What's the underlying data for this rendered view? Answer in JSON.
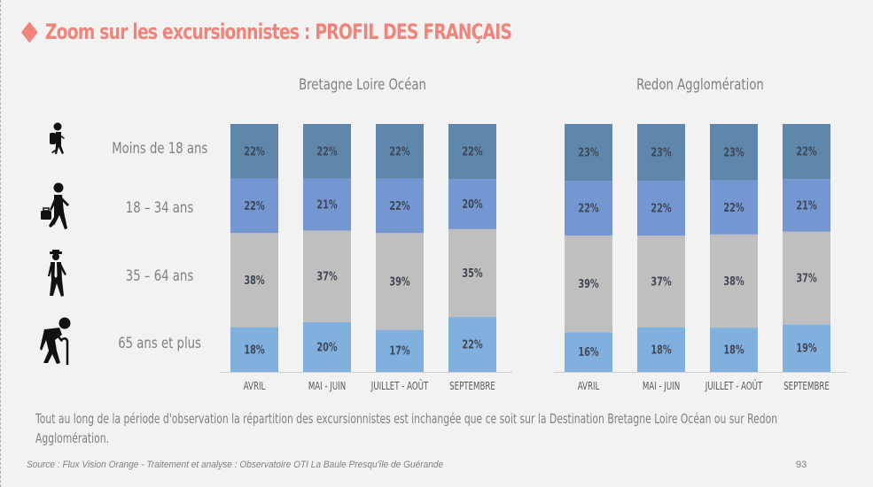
{
  "header": {
    "title": "Zoom sur les excursionnistes : PROFIL DES FRANÇAIS",
    "accent_color": "#f0847a"
  },
  "age_groups": [
    {
      "label": "Moins de 18 ans",
      "icon": "child-with-backpack-icon"
    },
    {
      "label": "18 – 34 ans",
      "icon": "man-with-briefcase-icon"
    },
    {
      "label": "35 – 64 ans",
      "icon": "man-with-hat-and-tie-icon"
    },
    {
      "label": "65 ans et plus",
      "icon": "elderly-with-cane-icon"
    }
  ],
  "colors": {
    "moins_18": "#5f87ab",
    "18_34": "#7496d1",
    "35_64": "#bfbfbf",
    "65_plus": "#82b0de",
    "label_text": "#404756",
    "axis": "#d0d0d0"
  },
  "chart_data": [
    {
      "type": "bar",
      "stacked": true,
      "normalized": true,
      "title": "Bretagne Loire Océan",
      "categories": [
        "AVRIL",
        "MAI - JUIN",
        "JUILLET - AOÛT",
        "SEPTEMBRE"
      ],
      "series": [
        {
          "name": "65 ans et plus",
          "values": [
            18,
            20,
            17,
            22
          ]
        },
        {
          "name": "35 – 64 ans",
          "values": [
            38,
            37,
            39,
            35
          ]
        },
        {
          "name": "18 – 34 ans",
          "values": [
            22,
            21,
            22,
            20
          ]
        },
        {
          "name": "Moins de 18 ans",
          "values": [
            22,
            22,
            22,
            22
          ]
        }
      ],
      "value_suffix": "%",
      "xlabel": "",
      "ylabel": "",
      "grid": false,
      "legend": "none"
    },
    {
      "type": "bar",
      "stacked": true,
      "normalized": true,
      "title": "Redon Agglomération",
      "categories": [
        "AVRIL",
        "MAI - JUIN",
        "JUILLET - AOÛT",
        "SEPTEMBRE"
      ],
      "series": [
        {
          "name": "65 ans et plus",
          "values": [
            16,
            18,
            18,
            19
          ]
        },
        {
          "name": "35 – 64 ans",
          "values": [
            39,
            37,
            38,
            37
          ]
        },
        {
          "name": "18 – 34 ans",
          "values": [
            22,
            22,
            22,
            21
          ]
        },
        {
          "name": "Moins de 18 ans",
          "values": [
            23,
            23,
            23,
            22
          ]
        }
      ],
      "value_suffix": "%",
      "xlabel": "",
      "ylabel": "",
      "grid": false,
      "legend": "none"
    }
  ],
  "description": "Tout au long de la période d'observation la répartition des excursionnistes est inchangée que ce soit sur la Destination Bretagne Loire Océan ou sur Redon Agglomération.",
  "footer": {
    "source": "Source : Flux Vision Orange - Traitement et analyse : Observatoire OTI La Baule Presqu'île de Guérande",
    "page_number": "93"
  }
}
